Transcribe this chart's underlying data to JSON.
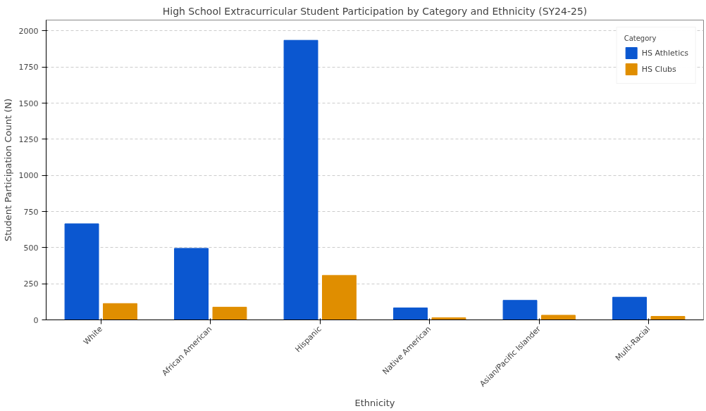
{
  "chart_data": {
    "type": "bar",
    "title": "High School Extracurricular Student Participation by Category and Ethnicity (SY24-25)",
    "xlabel": "Ethnicity",
    "ylabel": "Student Participation Count (N)",
    "legend_title": "Category",
    "categories": [
      "White",
      "African American",
      "Hispanic",
      "Native American",
      "Asian/Pacific Islander",
      "Multi-Racial"
    ],
    "series": [
      {
        "name": "HS Athletics",
        "color": "#0b57d0",
        "values": [
          665,
          495,
          1935,
          83,
          135,
          157
        ]
      },
      {
        "name": "HS Clubs",
        "color": "#e08e00",
        "values": [
          113,
          88,
          308,
          15,
          32,
          24
        ]
      }
    ],
    "ylim": [
      0,
      2075
    ],
    "yticks": [
      0,
      250,
      500,
      750,
      1000,
      1250,
      1500,
      1750,
      2000
    ],
    "grid": "y",
    "legend": "top right"
  }
}
